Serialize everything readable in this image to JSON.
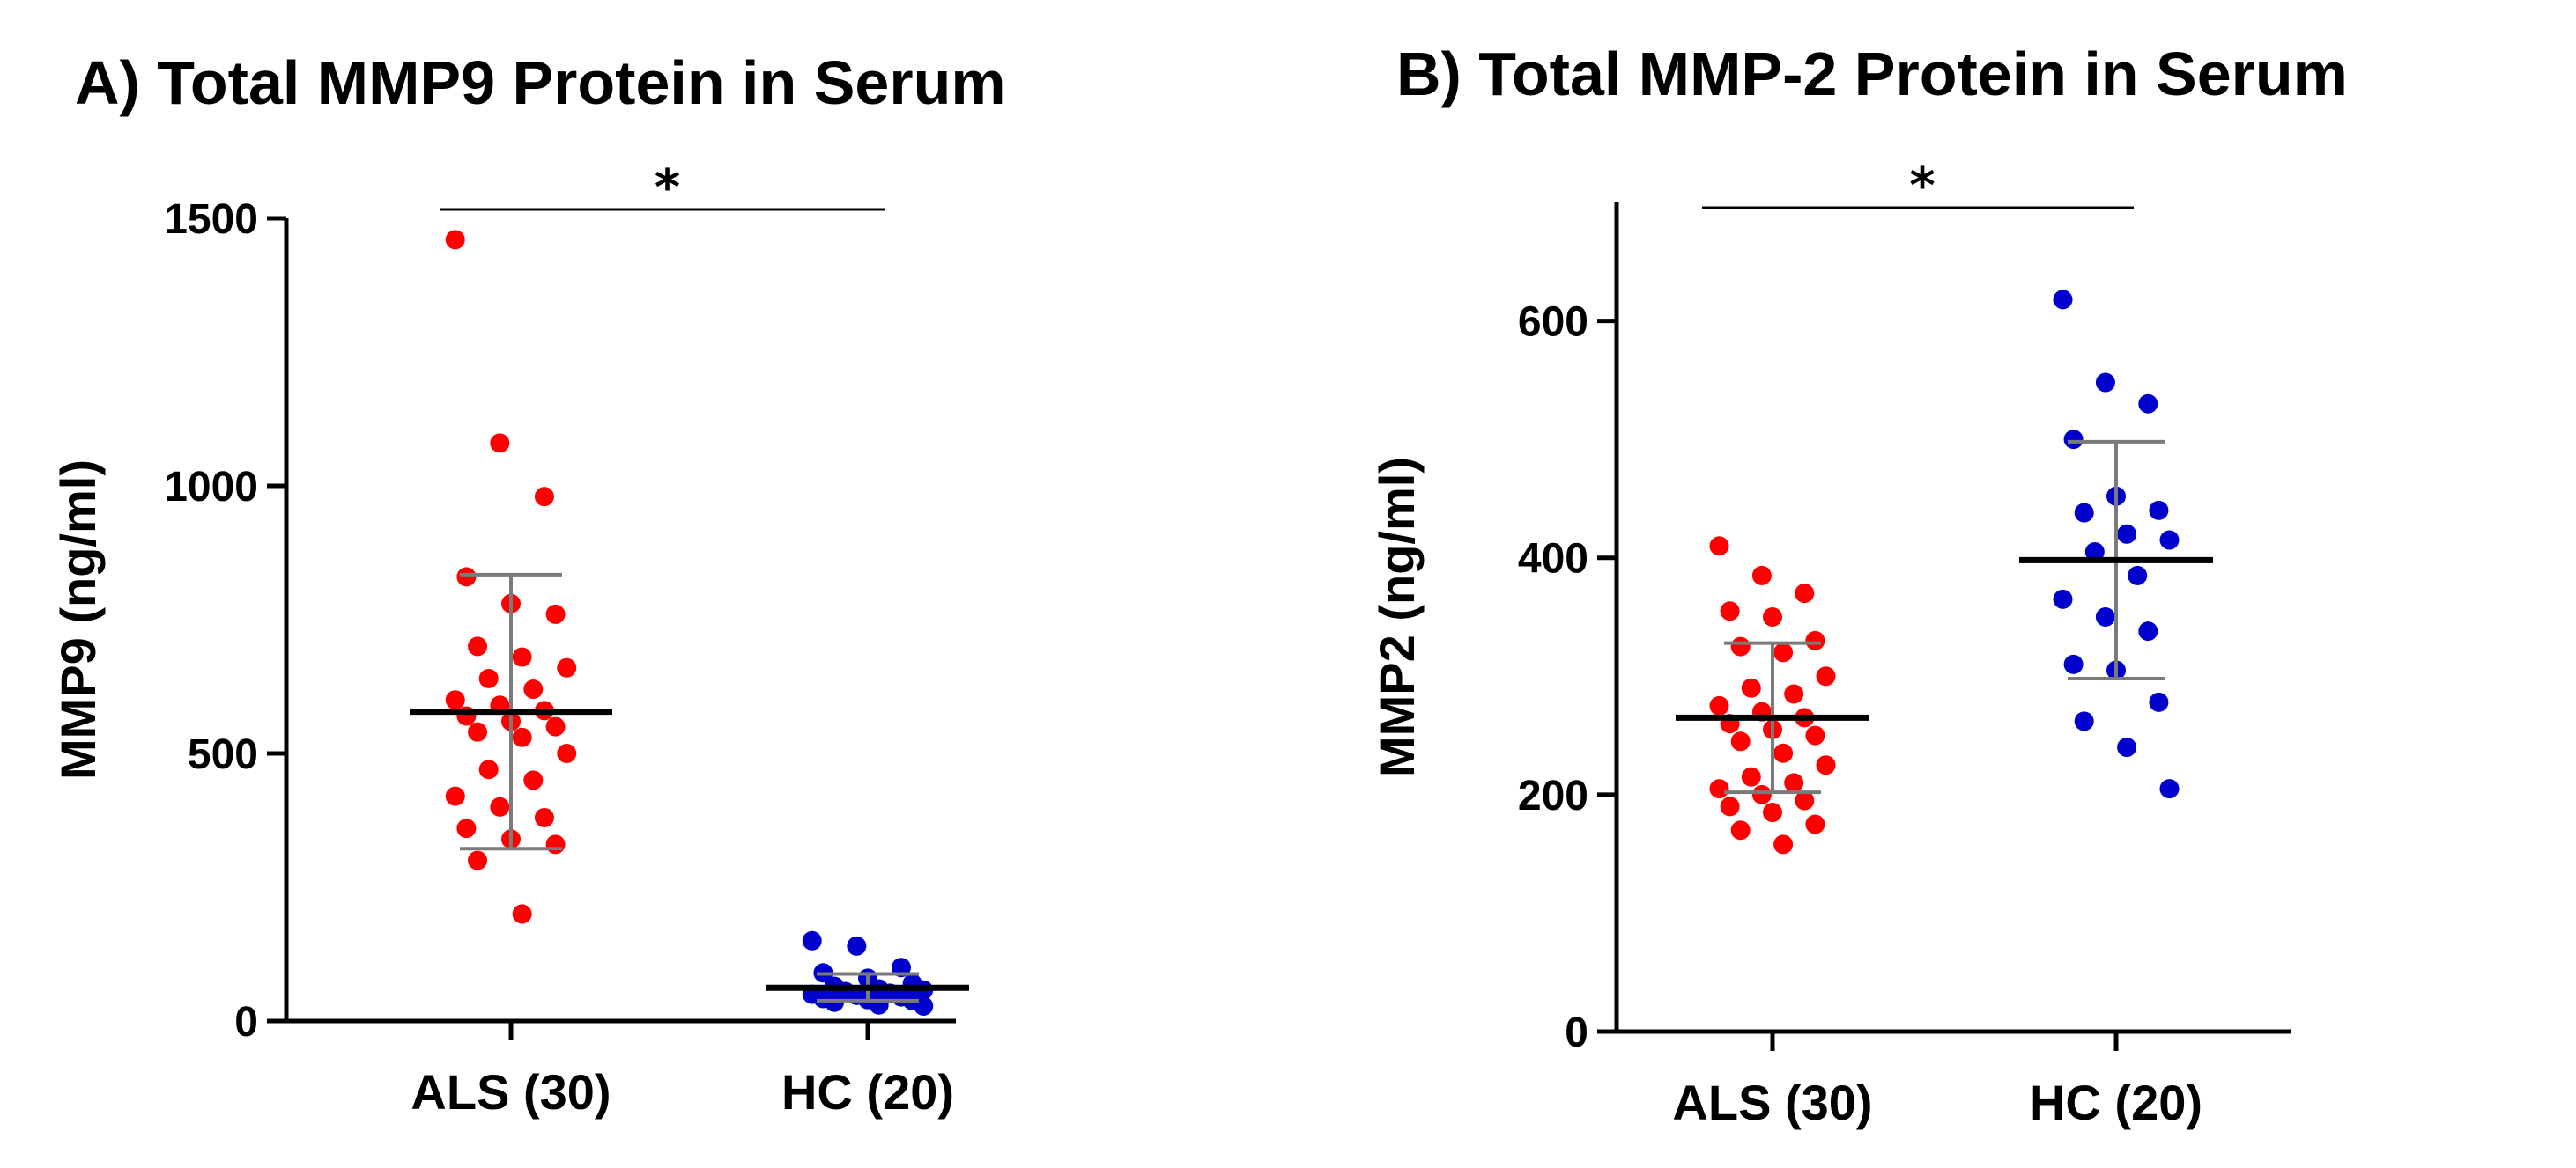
{
  "chart_data": [
    {
      "type": "scatter",
      "title": "A) Total MMP9 Protein in Serum",
      "ylabel": "MMP9 (ng/ml)",
      "xlabel": "",
      "ylim": [
        0,
        1500
      ],
      "yticks": [
        0,
        500,
        1000,
        1500
      ],
      "categories": [
        "ALS (30)",
        "HC (20)"
      ],
      "colors": [
        "#ff0000",
        "#0000cc"
      ],
      "significance": "*",
      "grid": false,
      "series": [
        {
          "values": [
            1460,
            1080,
            980,
            830,
            780,
            760,
            700,
            680,
            660,
            640,
            620,
            600,
            590,
            580,
            570,
            560,
            550,
            540,
            530,
            500,
            470,
            450,
            420,
            400,
            380,
            360,
            340,
            330,
            300,
            200
          ],
          "mean": 578,
          "sd_low": 322,
          "sd_high": 834
        },
        {
          "values": [
            150,
            140,
            100,
            90,
            80,
            70,
            65,
            60,
            58,
            55,
            52,
            50,
            48,
            45,
            42,
            40,
            38,
            35,
            30,
            28
          ],
          "mean": 62,
          "sd_low": 38,
          "sd_high": 88
        }
      ]
    },
    {
      "type": "scatter",
      "title": "B) Total MMP-2 Protein in Serum",
      "ylabel": "MMP2 (ng/ml)",
      "xlabel": "",
      "ylim": [
        0,
        700
      ],
      "yticks": [
        0,
        200,
        400,
        600
      ],
      "categories": [
        "ALS (30)",
        "HC (20)"
      ],
      "colors": [
        "#ff0000",
        "#0000cc"
      ],
      "significance": "*",
      "grid": false,
      "series": [
        {
          "values": [
            410,
            385,
            370,
            355,
            350,
            330,
            325,
            320,
            300,
            290,
            285,
            275,
            270,
            265,
            260,
            255,
            250,
            245,
            235,
            225,
            215,
            210,
            205,
            200,
            195,
            190,
            185,
            175,
            170,
            158
          ],
          "mean": 265,
          "sd_low": 202,
          "sd_high": 328
        },
        {
          "values": [
            618,
            548,
            530,
            500,
            452,
            440,
            438,
            420,
            415,
            405,
            385,
            365,
            350,
            338,
            310,
            305,
            278,
            262,
            240,
            205
          ],
          "mean": 398,
          "sd_low": 298,
          "sd_high": 498
        }
      ]
    }
  ]
}
